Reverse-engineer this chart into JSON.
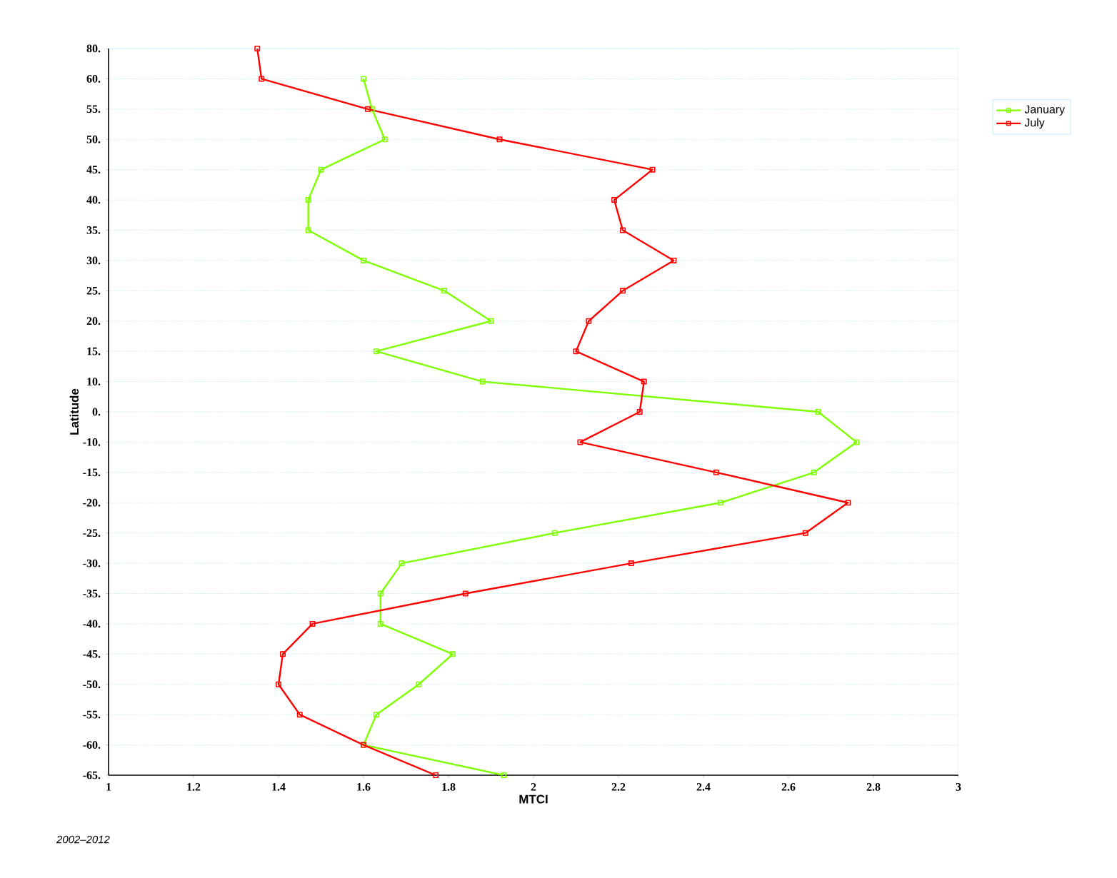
{
  "chart_data": {
    "type": "line",
    "orientation": "horizontal",
    "xlabel": "MTCI",
    "ylabel": "Latitude",
    "annotations": [
      "2002–2012"
    ],
    "categories": [
      "80.",
      "60.",
      "55.",
      "50.",
      "45.",
      "40.",
      "35.",
      "30.",
      "25.",
      "20.",
      "15.",
      "10.",
      "0.",
      "-10.",
      "-15.",
      "-20.",
      "-25.",
      "-30.",
      "-35.",
      "-40.",
      "-45.",
      "-50.",
      "-55.",
      "-60.",
      "-65."
    ],
    "series": [
      {
        "name": "January",
        "color": "#7fff00",
        "values": [
          null,
          1.6,
          1.62,
          1.65,
          1.5,
          1.47,
          1.47,
          1.6,
          1.79,
          1.9,
          1.63,
          1.88,
          2.67,
          2.76,
          2.66,
          2.44,
          2.05,
          1.69,
          1.64,
          1.64,
          1.81,
          1.73,
          1.63,
          1.6,
          1.93
        ]
      },
      {
        "name": "July",
        "color": "#ff0000",
        "values": [
          1.35,
          1.36,
          1.61,
          1.92,
          2.28,
          2.19,
          2.21,
          2.33,
          2.21,
          2.13,
          2.1,
          2.26,
          2.25,
          2.11,
          2.43,
          2.74,
          2.64,
          2.23,
          1.84,
          1.48,
          1.41,
          1.4,
          1.45,
          1.6,
          1.77
        ]
      }
    ],
    "xlim": [
      1,
      3
    ],
    "xticks": [
      1,
      1.2,
      1.4,
      1.6,
      1.8,
      2,
      2.2,
      2.4,
      2.6,
      2.8,
      3
    ],
    "grid": "y",
    "legend": "top right",
    "marker": "square",
    "line_style": "solid"
  }
}
